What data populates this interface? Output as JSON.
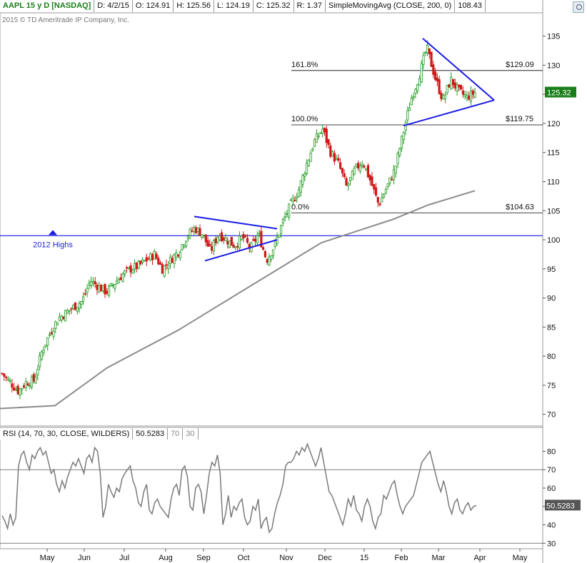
{
  "header": {
    "symbol": "AAPL 15 y D [NASDAQ]",
    "date": "D: 4/2/15",
    "open": "O: 124.91",
    "high": "H: 125.56",
    "low": "L: 124.19",
    "close": "C: 125.32",
    "range": "R: 1.37",
    "sma_label": "SimpleMovingAvg (CLOSE, 200, 0)",
    "sma_value": "108.43"
  },
  "copyright": "2015 © TD Ameritrade IP Company, Inc.",
  "rsi_header": {
    "label": "RSI (14, 70, 30, CLOSE, WILDERS)",
    "value": "50.5283",
    "overbought": "70",
    "oversold": "30"
  },
  "colors": {
    "up": "#1f9a1f",
    "down": "#d01818",
    "sma": "#8c8c8c",
    "trendline": "#1a1ae6",
    "fib_line": "#000000",
    "rsi_line": "#7a7a7a",
    "last_price_badge": "#1a7f1a",
    "grid_border": "#9a9a9a"
  },
  "chart_data": [
    {
      "type": "candlestick",
      "title": "AAPL 15 y D [NASDAQ]",
      "ylim": [
        68,
        139
      ],
      "y_ticks": [
        70,
        75,
        80,
        85,
        90,
        95,
        100,
        105,
        110,
        115,
        120,
        125,
        130,
        135
      ],
      "x_ticks": [
        "May",
        "Jun",
        "Jul",
        "Aug",
        "Sep",
        "Oct",
        "Nov",
        "Dec",
        "15",
        "Feb",
        "Mar",
        "Apr",
        "May"
      ],
      "last_price": "125.32",
      "close_path": [
        [
          "Apr",
          77.0
        ],
        [
          "Apr",
          75.5
        ],
        [
          "Apr",
          74.0
        ],
        [
          "Apr",
          75.5
        ],
        [
          "Apr",
          75.8
        ],
        [
          "Apr",
          81.0
        ],
        [
          "May",
          84.0
        ],
        [
          "May",
          86.5
        ],
        [
          "May",
          87.5
        ],
        [
          "May",
          88.5
        ],
        [
          "May",
          89.5
        ],
        [
          "Jun",
          93.0
        ],
        [
          "Jun",
          92.0
        ],
        [
          "Jun",
          91.0
        ],
        [
          "Jun",
          92.5
        ],
        [
          "Jun",
          94.0
        ],
        [
          "Jul",
          95.0
        ],
        [
          "Jul",
          95.5
        ],
        [
          "Jul",
          96.5
        ],
        [
          "Jul",
          97.5
        ],
        [
          "Jul",
          95.0
        ],
        [
          "Aug",
          96.5
        ],
        [
          "Aug",
          98.0
        ],
        [
          "Aug",
          100.5
        ],
        [
          "Aug",
          102.0
        ],
        [
          "Sep",
          101.0
        ],
        [
          "Sep",
          98.0
        ],
        [
          "Sep",
          101.0
        ],
        [
          "Sep",
          100.0
        ],
        [
          "Sep",
          99.0
        ],
        [
          "Oct",
          100.5
        ],
        [
          "Oct",
          98.5
        ],
        [
          "Oct",
          101.0
        ],
        [
          "Oct",
          96.5
        ],
        [
          "Oct",
          99.0
        ],
        [
          "Oct",
          103.0
        ],
        [
          "Nov",
          106.0
        ],
        [
          "Nov",
          108.5
        ],
        [
          "Nov",
          113.0
        ],
        [
          "Nov",
          117.0
        ],
        [
          "Nov",
          119.0
        ],
        [
          "Dec",
          115.0
        ],
        [
          "Dec",
          113.0
        ],
        [
          "Dec",
          109.0
        ],
        [
          "Dec",
          112.0
        ],
        [
          "Dec",
          113.5
        ],
        [
          "15",
          110.0
        ],
        [
          "15",
          106.0
        ],
        [
          "15",
          109.0
        ],
        [
          "15",
          112.0
        ],
        [
          "Feb",
          118.0
        ],
        [
          "Feb",
          124.0
        ],
        [
          "Feb",
          128.0
        ],
        [
          "Feb",
          133.0
        ],
        [
          "Mar",
          128.0
        ],
        [
          "Mar",
          124.0
        ],
        [
          "Mar",
          127.5
        ],
        [
          "Mar",
          125.5
        ],
        [
          "Mar",
          124.5
        ],
        [
          "Apr",
          125.32
        ]
      ],
      "sma200": [
        [
          77,
          71.5
        ],
        [
          150,
          78.0
        ],
        [
          250,
          84.5
        ],
        [
          350,
          92.0
        ],
        [
          450,
          99.5
        ],
        [
          550,
          103.5
        ],
        [
          600,
          106.0
        ],
        [
          665,
          108.43
        ]
      ],
      "horizontal_line": {
        "label": "2012 Highs",
        "value": 100.7
      },
      "fib_levels": [
        {
          "label": "161.8%",
          "price_label": "$129.09",
          "value": 129.09
        },
        {
          "label": "100.0%",
          "price_label": "$119.75",
          "value": 119.75
        },
        {
          "label": "0.0%",
          "price_label": "$104.63",
          "value": 104.63
        }
      ],
      "triangles": [
        {
          "upper": [
            [
              272,
              104.0
            ],
            [
              388,
              101.9
            ]
          ],
          "lower": [
            [
              287,
              96.4
            ],
            [
              388,
              100.0
            ]
          ]
        },
        {
          "upper": [
            [
              592,
              134.6
            ],
            [
              692,
              124.0
            ]
          ],
          "lower": [
            [
              565,
              119.6
            ],
            [
              692,
              124.0
            ]
          ]
        }
      ]
    },
    {
      "type": "line",
      "title": "RSI (14, 70, 30, CLOSE, WILDERS)",
      "ylim": [
        27,
        86
      ],
      "y_ticks": [
        30,
        40,
        50,
        60,
        70,
        80
      ],
      "reference_lines": [
        70,
        30
      ],
      "last_value": "50.5283",
      "values": [
        45,
        42,
        38,
        46,
        40,
        44,
        72,
        78,
        80,
        74,
        70,
        78,
        76,
        80,
        82,
        78,
        80,
        74,
        68,
        70,
        62,
        58,
        64,
        60,
        66,
        70,
        74,
        72,
        76,
        72,
        68,
        76,
        78,
        74,
        82,
        80,
        68,
        44,
        50,
        62,
        58,
        55,
        60,
        58,
        65,
        68,
        70,
        72,
        64,
        60,
        52,
        50,
        58,
        62,
        48,
        46,
        52,
        54,
        50,
        48,
        46,
        44,
        54,
        60,
        62,
        56,
        70,
        72,
        66,
        50,
        48,
        60,
        62,
        58,
        46,
        56,
        68,
        74,
        72,
        78,
        68,
        40,
        46,
        56,
        44,
        50,
        48,
        52,
        54,
        44,
        40,
        42,
        50,
        48,
        54,
        38,
        42,
        44,
        36,
        38,
        46,
        52,
        56,
        62,
        72,
        74,
        74,
        76,
        80,
        78,
        82,
        80,
        84,
        80,
        76,
        72,
        76,
        82,
        74,
        66,
        58,
        56,
        52,
        48,
        44,
        40,
        46,
        54,
        50,
        56,
        48,
        46,
        42,
        50,
        54,
        50,
        42,
        38,
        44,
        46,
        56,
        54,
        58,
        62,
        64,
        56,
        50,
        46,
        50,
        52,
        54,
        56,
        62,
        68,
        74,
        76,
        78,
        80,
        74,
        68,
        62,
        58,
        64,
        58,
        50,
        46,
        52,
        54,
        48,
        46,
        50,
        52,
        48,
        50,
        50.5
      ]
    }
  ]
}
